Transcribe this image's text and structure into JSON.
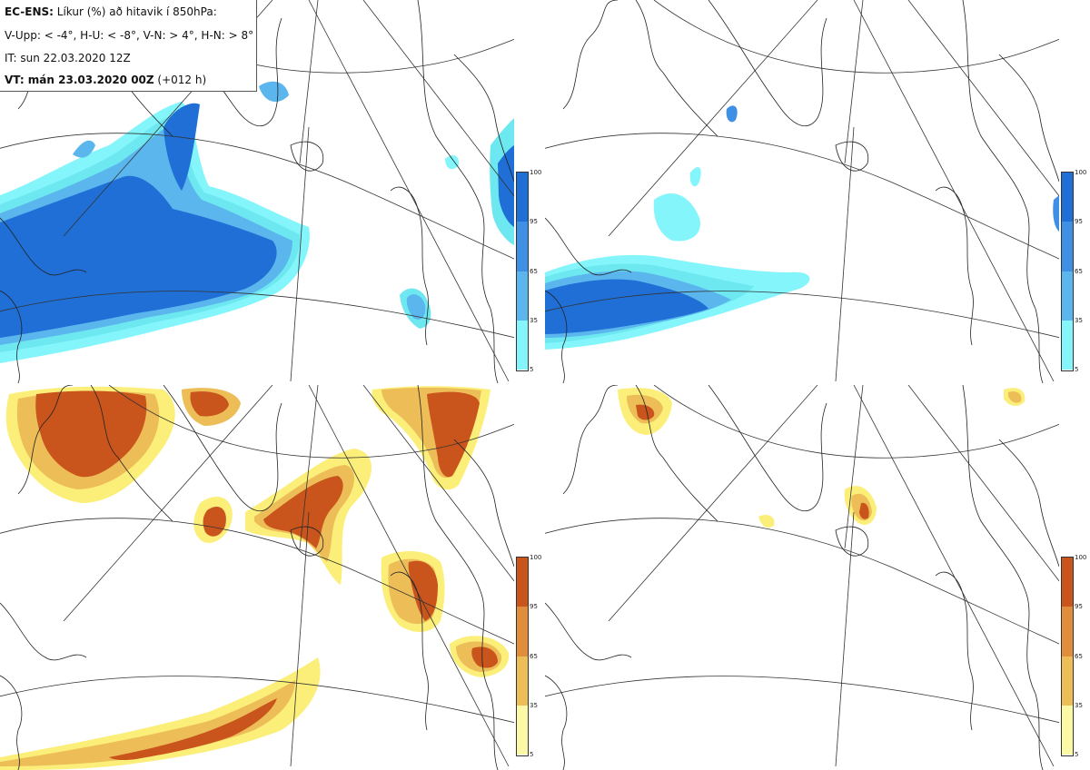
{
  "legend": {
    "line1_bold": "EC-ENS:",
    "line1_rest": " Líkur (%) að hitavik í 850hPa:",
    "line2": "V-Upp: < -4°, H-U: < -8°, V-N: > 4°, H-N: > 8°",
    "line3": "IT: sun 22.03.2020 12Z",
    "line4_bold": "VT: mán 23.03.2020 00Z",
    "line4_rest": " (+012 h)"
  },
  "colorbar_cold": {
    "ticks": [
      "100",
      "95",
      "65",
      "35",
      "5"
    ],
    "colors": [
      "#1f6fd6",
      "#3f8fe4",
      "#5ab6ec",
      "#6ee8f0",
      "#84f6fb"
    ]
  },
  "colorbar_warm": {
    "ticks": [
      "100",
      "95",
      "65",
      "35",
      "5"
    ],
    "colors": [
      "#c9541c",
      "#e08d3c",
      "#edbd58",
      "#fbef7a",
      "#fcf9a6"
    ]
  },
  "panels": [
    {
      "id": "top-left",
      "variable": "cold-anomaly-below-minus-4"
    },
    {
      "id": "top-right",
      "variable": "cold-anomaly-below-minus-8"
    },
    {
      "id": "bottom-left",
      "variable": "warm-anomaly-above-4"
    },
    {
      "id": "bottom-right",
      "variable": "warm-anomaly-above-8"
    }
  ]
}
